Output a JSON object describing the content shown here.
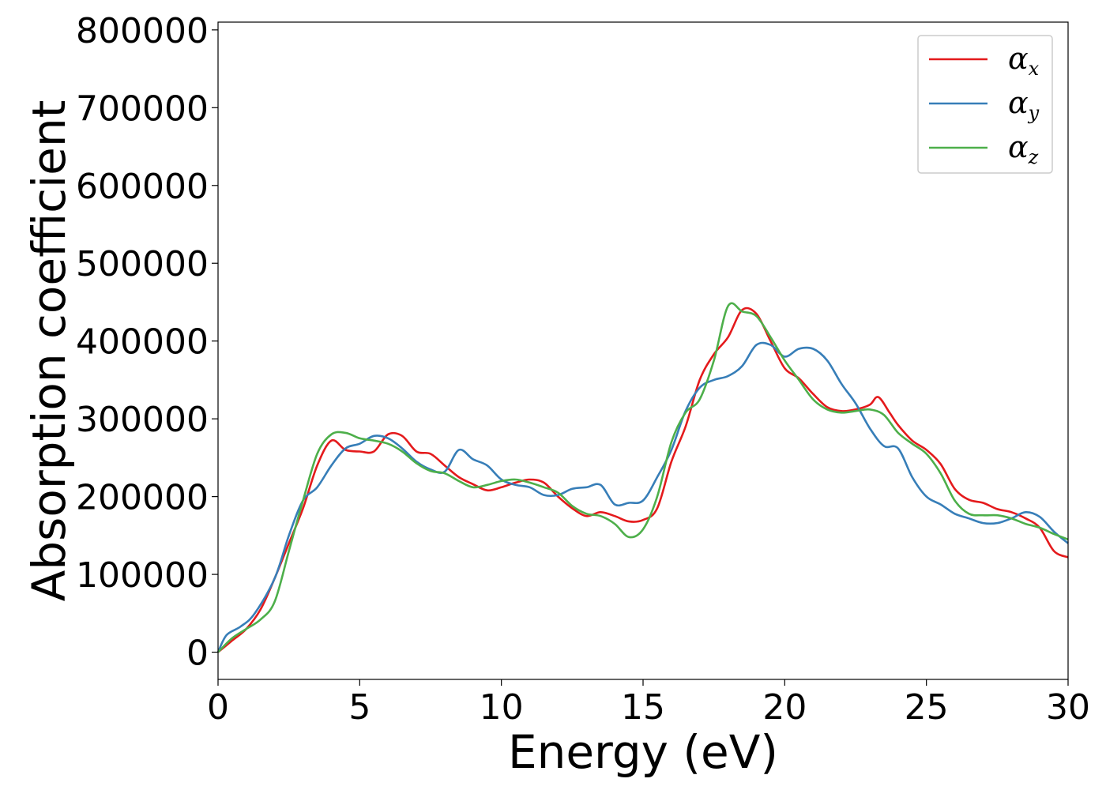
{
  "chart_data": {
    "type": "line",
    "title": "",
    "xlabel": "Energy (eV)",
    "ylabel": "Absorption coefficient",
    "xlim": [
      0,
      30
    ],
    "ylim": [
      -35000,
      810000
    ],
    "xticks": [
      0,
      5,
      10,
      15,
      20,
      25,
      30
    ],
    "xtick_labels": [
      "0",
      "5",
      "10",
      "15",
      "20",
      "25",
      "30"
    ],
    "yticks": [
      0,
      100000,
      200000,
      300000,
      400000,
      500000,
      600000,
      700000,
      800000
    ],
    "ytick_labels": [
      "0",
      "100000",
      "200000",
      "300000",
      "400000",
      "500000",
      "600000",
      "700000",
      "800000"
    ],
    "grid": false,
    "legend_position": "top-right",
    "series": [
      {
        "name": "α",
        "subscript": "x",
        "color": "#e41a1c",
        "points": [
          [
            0,
            0
          ],
          [
            0.5,
            15000
          ],
          [
            1,
            30000
          ],
          [
            1.5,
            55000
          ],
          [
            2,
            95000
          ],
          [
            2.5,
            140000
          ],
          [
            3,
            185000
          ],
          [
            3.5,
            240000
          ],
          [
            4,
            272000
          ],
          [
            4.5,
            260000
          ],
          [
            5,
            258000
          ],
          [
            5.5,
            258000
          ],
          [
            6,
            280000
          ],
          [
            6.5,
            278000
          ],
          [
            7,
            258000
          ],
          [
            7.5,
            255000
          ],
          [
            8,
            240000
          ],
          [
            8.5,
            225000
          ],
          [
            9,
            216000
          ],
          [
            9.5,
            208000
          ],
          [
            10,
            212000
          ],
          [
            10.5,
            218000
          ],
          [
            11,
            222000
          ],
          [
            11.5,
            218000
          ],
          [
            12,
            200000
          ],
          [
            12.5,
            185000
          ],
          [
            13,
            175000
          ],
          [
            13.5,
            180000
          ],
          [
            14,
            175000
          ],
          [
            14.5,
            168000
          ],
          [
            15,
            170000
          ],
          [
            15.5,
            185000
          ],
          [
            16,
            245000
          ],
          [
            16.5,
            290000
          ],
          [
            17,
            350000
          ],
          [
            17.5,
            383000
          ],
          [
            18,
            405000
          ],
          [
            18.5,
            440000
          ],
          [
            19,
            435000
          ],
          [
            19.5,
            400000
          ],
          [
            20,
            365000
          ],
          [
            20.5,
            352000
          ],
          [
            21,
            332000
          ],
          [
            21.5,
            315000
          ],
          [
            22,
            310000
          ],
          [
            22.5,
            312000
          ],
          [
            23,
            318000
          ],
          [
            23.3,
            328000
          ],
          [
            23.7,
            308000
          ],
          [
            24,
            292000
          ],
          [
            24.5,
            272000
          ],
          [
            25,
            260000
          ],
          [
            25.5,
            242000
          ],
          [
            26,
            210000
          ],
          [
            26.5,
            196000
          ],
          [
            27,
            192000
          ],
          [
            27.5,
            184000
          ],
          [
            28,
            180000
          ],
          [
            28.5,
            172000
          ],
          [
            29,
            160000
          ],
          [
            29.5,
            130000
          ],
          [
            30,
            122000
          ]
        ]
      },
      {
        "name": "α",
        "subscript": "y",
        "color": "#377eb8",
        "points": [
          [
            0,
            0
          ],
          [
            0.3,
            22000
          ],
          [
            0.8,
            33000
          ],
          [
            1.3,
            50000
          ],
          [
            2,
            95000
          ],
          [
            2.5,
            150000
          ],
          [
            3,
            195000
          ],
          [
            3.5,
            212000
          ],
          [
            4,
            240000
          ],
          [
            4.5,
            262000
          ],
          [
            5,
            268000
          ],
          [
            5.5,
            278000
          ],
          [
            6,
            275000
          ],
          [
            6.5,
            262000
          ],
          [
            7,
            245000
          ],
          [
            7.5,
            235000
          ],
          [
            8,
            232000
          ],
          [
            8.5,
            260000
          ],
          [
            9,
            248000
          ],
          [
            9.5,
            240000
          ],
          [
            10,
            222000
          ],
          [
            10.5,
            215000
          ],
          [
            11,
            212000
          ],
          [
            11.5,
            202000
          ],
          [
            12,
            202000
          ],
          [
            12.5,
            210000
          ],
          [
            13,
            212000
          ],
          [
            13.5,
            215000
          ],
          [
            14,
            190000
          ],
          [
            14.5,
            192000
          ],
          [
            15,
            195000
          ],
          [
            15.5,
            225000
          ],
          [
            16,
            260000
          ],
          [
            16.5,
            310000
          ],
          [
            17,
            340000
          ],
          [
            17.5,
            350000
          ],
          [
            18,
            355000
          ],
          [
            18.5,
            368000
          ],
          [
            19,
            395000
          ],
          [
            19.5,
            395000
          ],
          [
            20,
            380000
          ],
          [
            20.5,
            390000
          ],
          [
            21,
            390000
          ],
          [
            21.5,
            375000
          ],
          [
            22,
            345000
          ],
          [
            22.5,
            320000
          ],
          [
            23,
            288000
          ],
          [
            23.5,
            265000
          ],
          [
            24,
            262000
          ],
          [
            24.5,
            225000
          ],
          [
            25,
            200000
          ],
          [
            25.5,
            190000
          ],
          [
            26,
            178000
          ],
          [
            26.5,
            172000
          ],
          [
            27,
            166000
          ],
          [
            27.5,
            166000
          ],
          [
            28,
            172000
          ],
          [
            28.5,
            180000
          ],
          [
            29,
            174000
          ],
          [
            29.5,
            155000
          ],
          [
            30,
            140000
          ]
        ]
      },
      {
        "name": "α",
        "subscript": "z",
        "color": "#4daf4a",
        "points": [
          [
            0,
            0
          ],
          [
            0.5,
            18000
          ],
          [
            1,
            30000
          ],
          [
            1.5,
            42000
          ],
          [
            2,
            65000
          ],
          [
            2.5,
            130000
          ],
          [
            3,
            195000
          ],
          [
            3.5,
            255000
          ],
          [
            4,
            280000
          ],
          [
            4.5,
            282000
          ],
          [
            5,
            275000
          ],
          [
            5.5,
            272000
          ],
          [
            6,
            268000
          ],
          [
            6.5,
            258000
          ],
          [
            7,
            243000
          ],
          [
            7.5,
            233000
          ],
          [
            8,
            230000
          ],
          [
            8.5,
            220000
          ],
          [
            9,
            212000
          ],
          [
            9.5,
            215000
          ],
          [
            10,
            220000
          ],
          [
            10.5,
            222000
          ],
          [
            11,
            218000
          ],
          [
            11.5,
            212000
          ],
          [
            12,
            205000
          ],
          [
            12.5,
            188000
          ],
          [
            13,
            178000
          ],
          [
            13.5,
            175000
          ],
          [
            14,
            165000
          ],
          [
            14.5,
            148000
          ],
          [
            15,
            158000
          ],
          [
            15.5,
            200000
          ],
          [
            16,
            270000
          ],
          [
            16.5,
            308000
          ],
          [
            17,
            325000
          ],
          [
            17.5,
            375000
          ],
          [
            18,
            445000
          ],
          [
            18.5,
            438000
          ],
          [
            19,
            432000
          ],
          [
            19.5,
            405000
          ],
          [
            20,
            375000
          ],
          [
            20.5,
            350000
          ],
          [
            21,
            325000
          ],
          [
            21.5,
            312000
          ],
          [
            22,
            308000
          ],
          [
            22.5,
            310000
          ],
          [
            23,
            312000
          ],
          [
            23.5,
            305000
          ],
          [
            24,
            282000
          ],
          [
            24.5,
            268000
          ],
          [
            25,
            255000
          ],
          [
            25.5,
            230000
          ],
          [
            26,
            195000
          ],
          [
            26.5,
            178000
          ],
          [
            27,
            176000
          ],
          [
            27.5,
            176000
          ],
          [
            28,
            172000
          ],
          [
            28.5,
            165000
          ],
          [
            29,
            160000
          ],
          [
            29.5,
            152000
          ],
          [
            30,
            145000
          ]
        ]
      }
    ]
  }
}
